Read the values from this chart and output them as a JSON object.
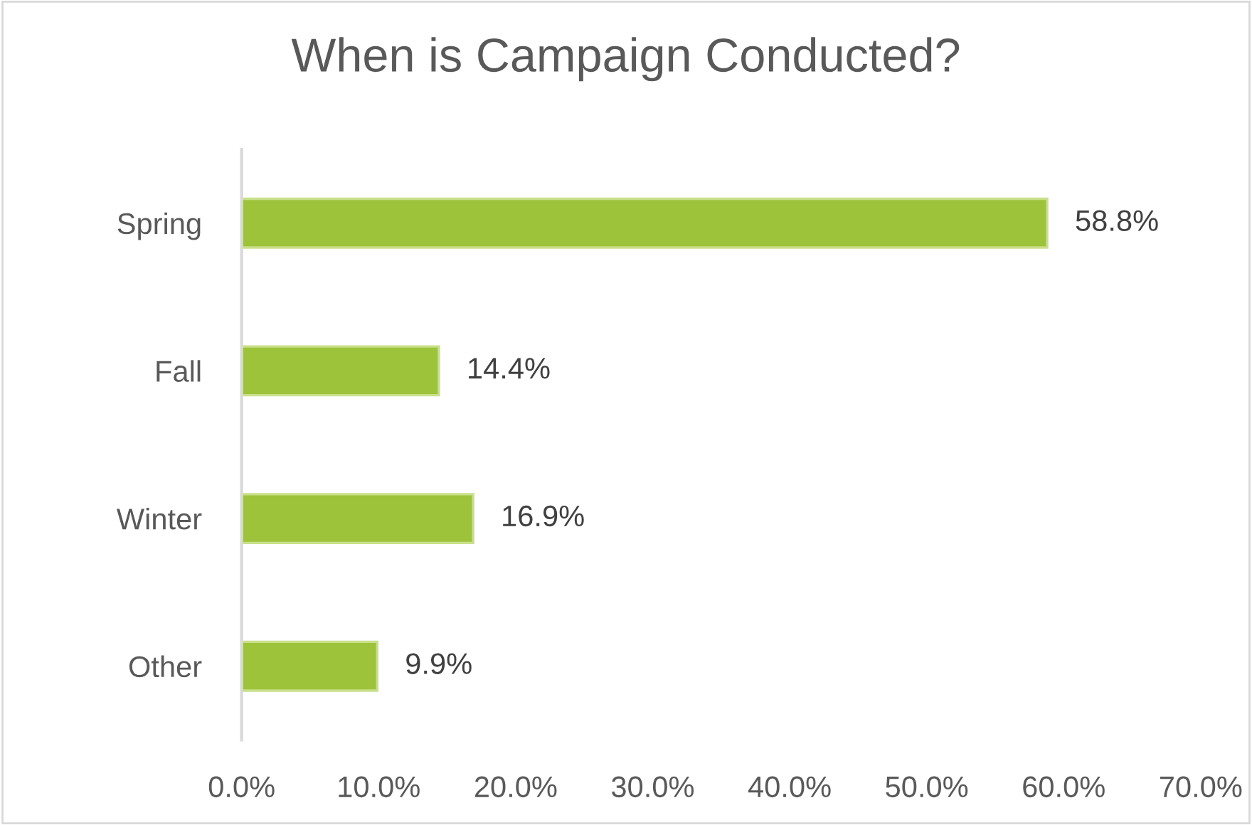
{
  "chart_data": {
    "type": "bar",
    "orientation": "horizontal",
    "title": "When is Campaign Conducted?",
    "categories": [
      "Spring",
      "Fall",
      "Winter",
      "Other"
    ],
    "values": [
      58.8,
      14.4,
      16.9,
      9.9
    ],
    "value_labels": [
      "58.8%",
      "14.4%",
      "16.9%",
      "9.9%"
    ],
    "color": "#9dc33b",
    "xlim": [
      0,
      70
    ],
    "xticks": [
      {
        "value": 0,
        "label": "0.0%"
      },
      {
        "value": 10,
        "label": "10.0%"
      },
      {
        "value": 20,
        "label": "20.0%"
      },
      {
        "value": 30,
        "label": "30.0%"
      },
      {
        "value": 40,
        "label": "40.0%"
      },
      {
        "value": 50,
        "label": "50.0%"
      },
      {
        "value": 60,
        "label": "60.0%"
      },
      {
        "value": 70,
        "label": "70.0%"
      }
    ],
    "grid": false,
    "legend": false
  }
}
